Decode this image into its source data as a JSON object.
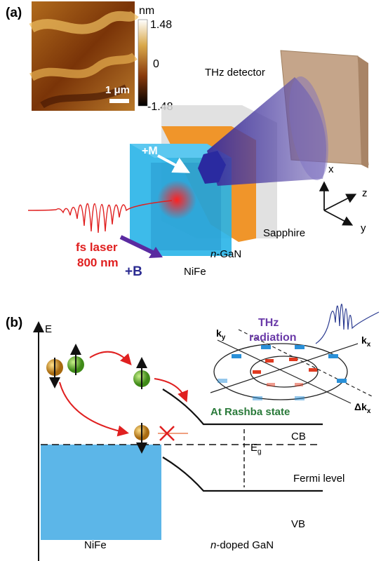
{
  "panel_a": {
    "label": "(a)",
    "afm": {
      "unit": "nm",
      "max": "1.48",
      "mid": "0",
      "min": "-1.48",
      "scale": "1 μm"
    },
    "detector": "THz detector",
    "magnetization": "+M",
    "axes": {
      "x": "x",
      "z": "z",
      "y": "y"
    },
    "layers": {
      "sapphire": "Sapphire",
      "gan_prefix": "n",
      "gan": "-GaN",
      "nife": "NiFe"
    },
    "laser": {
      "line1": "fs laser",
      "line2": "800 nm"
    },
    "field": "+B"
  },
  "panel_b": {
    "label": "(b)",
    "energy_axis": "E",
    "thz": {
      "line1": "THz",
      "line2": "radiation"
    },
    "ky": {
      "main": "k",
      "sub": "y"
    },
    "kx": {
      "main": "k",
      "sub": "x"
    },
    "dkx": {
      "main": "Δk",
      "sub": "x"
    },
    "rashba": "At Rashba state",
    "cb": "CB",
    "eg": {
      "main": "E",
      "sub": "g"
    },
    "fermi": "Fermi level",
    "vb": "VB",
    "nife": "NiFe",
    "gan_prefix": "n",
    "gan": "-doped GaN"
  }
}
